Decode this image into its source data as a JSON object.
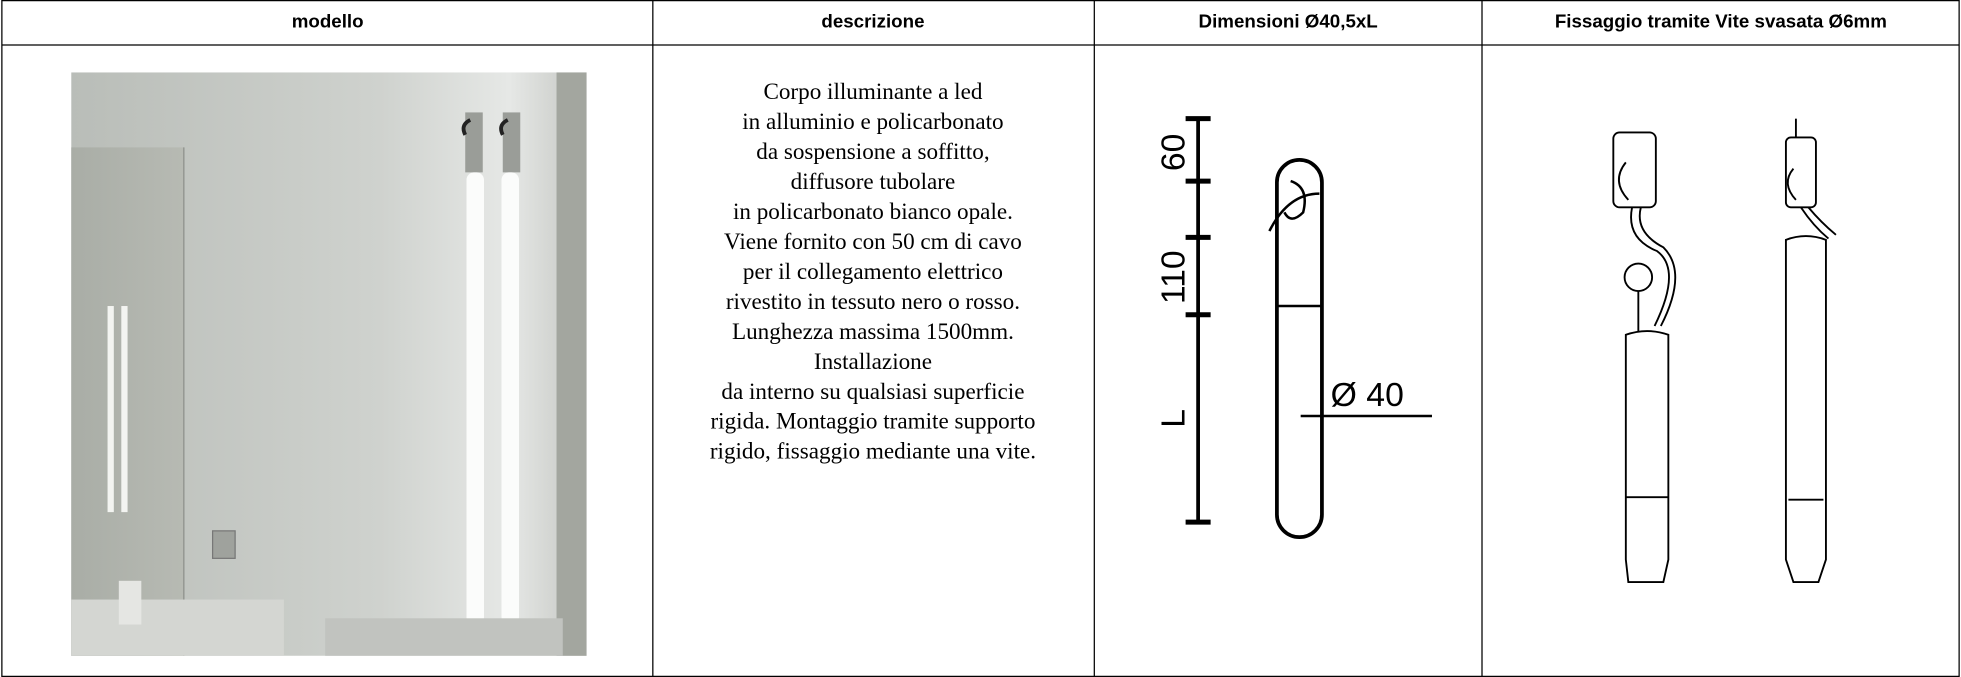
{
  "table": {
    "header": [
      "modello",
      "descrizione",
      "Dimensioni  Ø40,5xL",
      "Fissaggio tramite Vite svasata Ø6mm"
    ],
    "description": [
      "Corpo illuminante a led",
      "in alluminio e policarbonato",
      "da sospensione a soffitto,",
      "diffusore tubolare",
      "in policarbonato bianco opale.",
      "Viene fornito con 50 cm di cavo",
      "per il collegamento elettrico",
      "rivestito in tessuto nero o rosso.",
      "Lunghezza massima 1500mm.",
      "Installazione",
      "da interno su qualsiasi superficie",
      "rigida. Montaggio tramite supporto",
      "rigido, fissaggio mediante una vite."
    ],
    "dimension_labels": [
      "60",
      "110",
      "L",
      "Ø 40"
    ]
  }
}
